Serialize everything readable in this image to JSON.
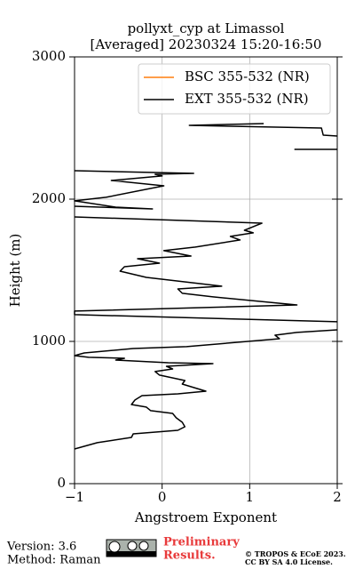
{
  "chart_data": {
    "type": "line",
    "orientation": "vertical-profile",
    "title": [
      "pollyxt_cyp at Limassol",
      "[Averaged] 20230324 15:20-16:50"
    ],
    "x_label": "Angstroem Exponent",
    "y_label": "Height (m)",
    "xlim": [
      -1,
      2
    ],
    "ylim": [
      0,
      3000
    ],
    "xticks": [
      {
        "value": -1,
        "label": "−1"
      },
      0,
      1,
      2
    ],
    "yticks": [
      0,
      1000,
      2000,
      3000
    ],
    "grid": true,
    "legend": "upper right",
    "series": [
      {
        "name": "BSC 355-532 (NR)",
        "color": "#ff7f0e",
        "values": [],
        "heights": []
      },
      {
        "name": "EXT 355-532 (NR)",
        "color": "#000000",
        "values": [
          -1,
          -0.74,
          -0.35,
          -0.33,
          0.18,
          0.26,
          0.23,
          0.16,
          0.12,
          -0.13,
          -0.18,
          -0.35,
          -0.31,
          -0.23,
          0.18,
          0.5,
          0.23,
          0.26,
          -0.03,
          -0.08,
          0.12,
          0.05,
          0.58,
          0.07,
          -0.53,
          -0.43,
          -0.84,
          -1,
          -0.89,
          -0.33,
          0.28,
          1.34,
          1.29,
          1.54,
          2,
          null,
          2,
          -1,
          -1,
          1.54,
          0.58,
          0.23,
          0.18,
          0.68,
          -0.18,
          -0.48,
          -0.43,
          -0.03,
          -0.28,
          0.33,
          0.02,
          0.38,
          0.89,
          0.78,
          1.04,
          0.94,
          1.14,
          -1,
          null,
          -1,
          -0.11,
          -0.53,
          -1,
          -0.64,
          0.02,
          -0.58,
          0,
          -0.08,
          0.36,
          -1,
          null,
          1.16,
          0.31,
          1.82,
          1.84,
          2,
          null,
          1.51,
          2
        ],
        "heights": [
          244,
          288,
          325,
          350,
          375,
          400,
          431,
          463,
          494,
          513,
          538,
          556,
          588,
          619,
          631,
          650,
          700,
          725,
          763,
          788,
          806,
          825,
          844,
          850,
          869,
          881,
          888,
          900,
          919,
          950,
          963,
          1019,
          1044,
          1063,
          1081,
          null,
          1138,
          1188,
          1213,
          1256,
          1313,
          1338,
          1369,
          1388,
          1450,
          1494,
          1525,
          1550,
          1581,
          1600,
          1638,
          1663,
          1713,
          1738,
          1763,
          1781,
          1831,
          1875,
          null,
          1950,
          1931,
          1944,
          1988,
          2013,
          2094,
          2131,
          2163,
          2175,
          2181,
          2200,
          null,
          2531,
          2519,
          2500,
          2450,
          2444,
          null,
          2350,
          2350
        ]
      }
    ]
  },
  "footer": {
    "version": "Version: 3.6",
    "method": "Method: Raman",
    "status": [
      "Preliminary",
      "Results."
    ],
    "copyright": [
      "© TROPOS & ECoE 2023.",
      "CC BY SA 4.0 License."
    ]
  }
}
